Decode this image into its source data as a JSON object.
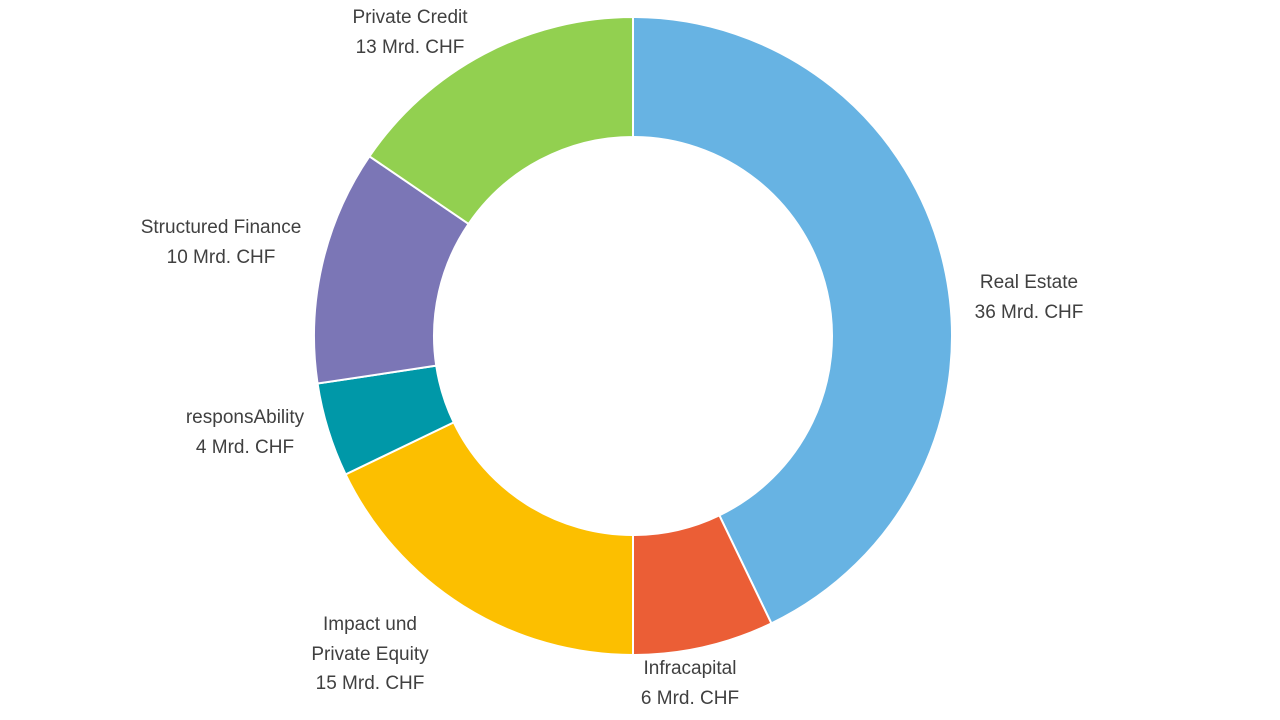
{
  "chart_data": {
    "type": "pie",
    "variant": "donut",
    "categories": [
      "Real Estate",
      "Infracapital",
      "Impact und Private Equity",
      "responsAbility",
      "Structured Finance",
      "Private Credit"
    ],
    "values": [
      36,
      6,
      15,
      4,
      10,
      13
    ],
    "unit": "Mrd. CHF",
    "data_labels": [
      "36 Mrd. CHF",
      "6 Mrd. CHF",
      "15 Mrd. CHF",
      "4 Mrd. CHF",
      "10 Mrd. CHF",
      "13 Mrd. CHF"
    ],
    "colors": [
      "#67b3e3",
      "#eb5e36",
      "#fcbf00",
      "#0098a8",
      "#7b76b6",
      "#92d050"
    ],
    "start_angle": "top",
    "direction": "clockwise",
    "legend": "none"
  }
}
